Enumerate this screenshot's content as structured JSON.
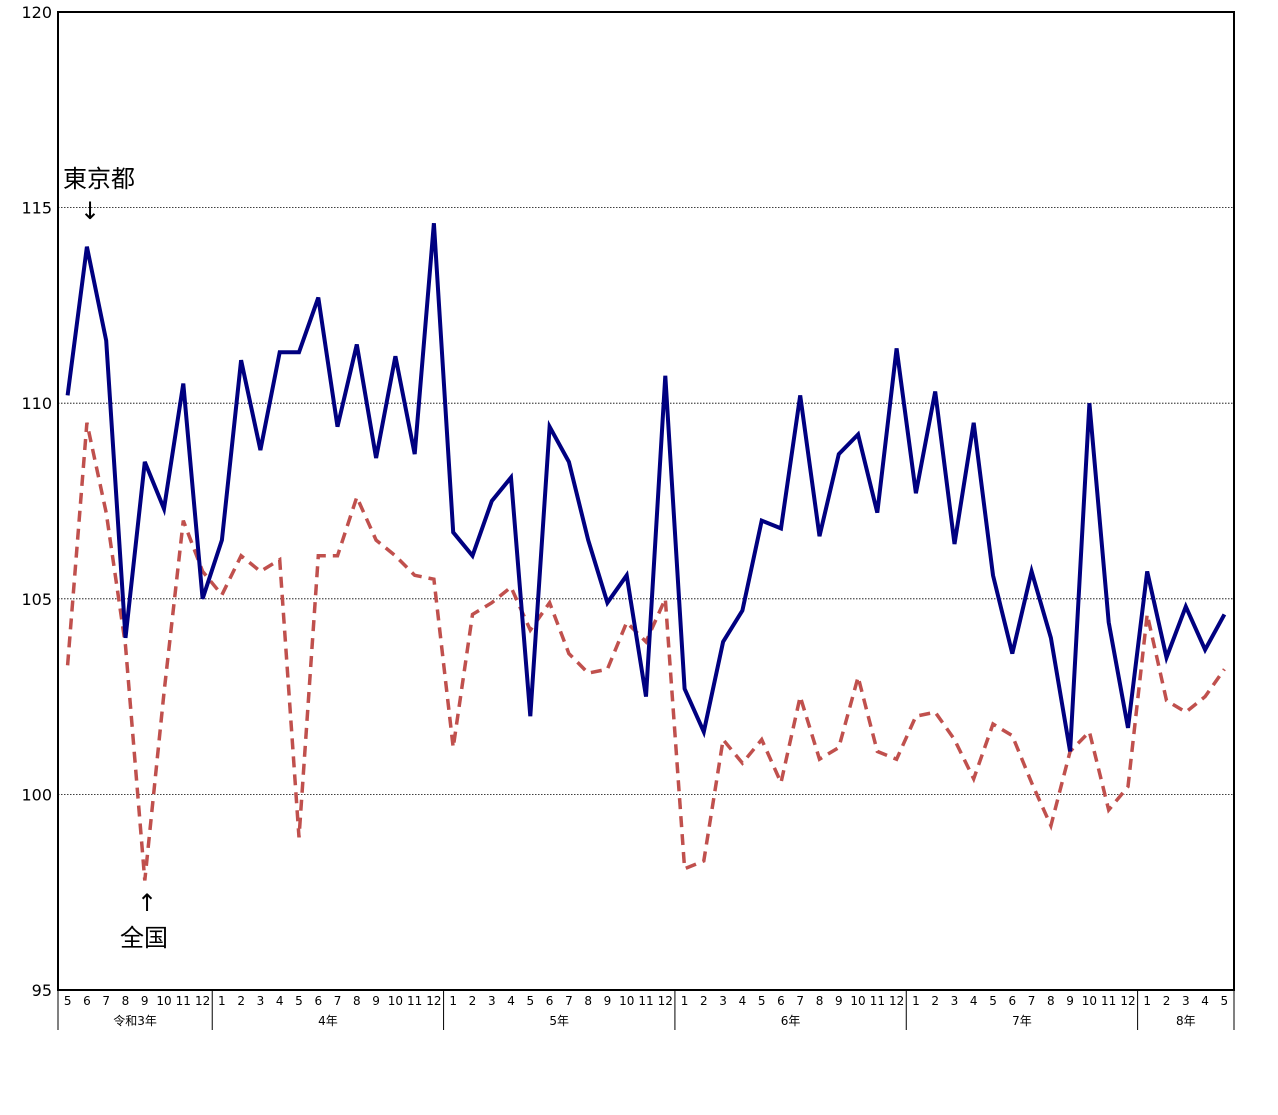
{
  "chart_data": {
    "type": "line",
    "ylim": [
      95,
      120
    ],
    "yticks": [
      "95",
      "100",
      "105",
      "110",
      "115",
      "120"
    ],
    "grid": true,
    "month_labels": [
      "5",
      "6",
      "7",
      "8",
      "9",
      "10",
      "11",
      "12",
      "1",
      "2",
      "3",
      "4",
      "5",
      "6",
      "7",
      "8",
      "9",
      "10",
      "11",
      "12",
      "1",
      "2",
      "3",
      "4",
      "5",
      "6",
      "7",
      "8",
      "9",
      "10",
      "11",
      "12",
      "1",
      "2",
      "3",
      "4",
      "5",
      "6",
      "7",
      "8",
      "9",
      "10",
      "11",
      "12",
      "1",
      "2",
      "3",
      "4",
      "5",
      "6",
      "7",
      "8",
      "9",
      "10",
      "11",
      "12",
      "1",
      "2",
      "3",
      "4",
      "5"
    ],
    "year_groups": [
      {
        "label": "令和3年",
        "start": 0,
        "count": 8
      },
      {
        "label": "4年",
        "start": 8,
        "count": 12
      },
      {
        "label": "5年",
        "start": 20,
        "count": 12
      },
      {
        "label": "6年",
        "start": 32,
        "count": 12
      },
      {
        "label": "7年",
        "start": 44,
        "count": 12
      },
      {
        "label": "8年",
        "start": 56,
        "count": 5
      }
    ],
    "series": [
      {
        "name": "東京都",
        "color": "#000080",
        "style": "solid",
        "values": [
          110.2,
          114.0,
          111.6,
          104.0,
          108.5,
          107.3,
          110.5,
          105.0,
          106.5,
          111.1,
          108.8,
          111.3,
          111.3,
          112.7,
          109.4,
          111.5,
          108.6,
          111.2,
          108.7,
          114.6,
          106.7,
          106.1,
          107.5,
          108.1,
          102.0,
          109.4,
          108.5,
          106.5,
          104.9,
          105.6,
          102.5,
          110.7,
          102.7,
          101.6,
          103.9,
          104.7,
          107.0,
          106.8,
          110.2,
          106.6,
          108.7,
          109.2,
          107.2,
          111.4,
          107.7,
          110.3,
          106.4,
          109.5,
          105.6,
          103.6,
          105.7,
          104.0,
          101.1,
          110.0,
          104.4,
          101.7,
          105.7,
          103.5,
          104.8,
          103.7,
          104.6
        ]
      },
      {
        "name": "全国",
        "color": "#C0504D",
        "style": "dashed",
        "values": [
          103.3,
          109.5,
          107.2,
          103.8,
          97.8,
          102.6,
          107.0,
          105.7,
          105.1,
          106.1,
          105.7,
          106.0,
          98.9,
          106.1,
          106.1,
          107.6,
          106.5,
          106.1,
          105.6,
          105.5,
          101.2,
          104.6,
          104.9,
          105.3,
          104.2,
          104.9,
          103.6,
          103.1,
          103.2,
          104.4,
          103.9,
          105.0,
          98.1,
          98.3,
          101.4,
          100.8,
          101.4,
          100.3,
          102.5,
          100.9,
          101.2,
          103.0,
          101.1,
          100.9,
          102.0,
          102.1,
          101.4,
          100.4,
          101.8,
          101.5,
          100.3,
          99.2,
          101.1,
          101.6,
          99.6,
          100.2,
          104.6,
          102.4,
          102.1,
          102.5,
          103.2
        ]
      }
    ],
    "annotations": {
      "tokyo_label": "東京都",
      "tokyo_arrow": "↓",
      "national_label": "全国",
      "national_arrow": "↑"
    }
  }
}
